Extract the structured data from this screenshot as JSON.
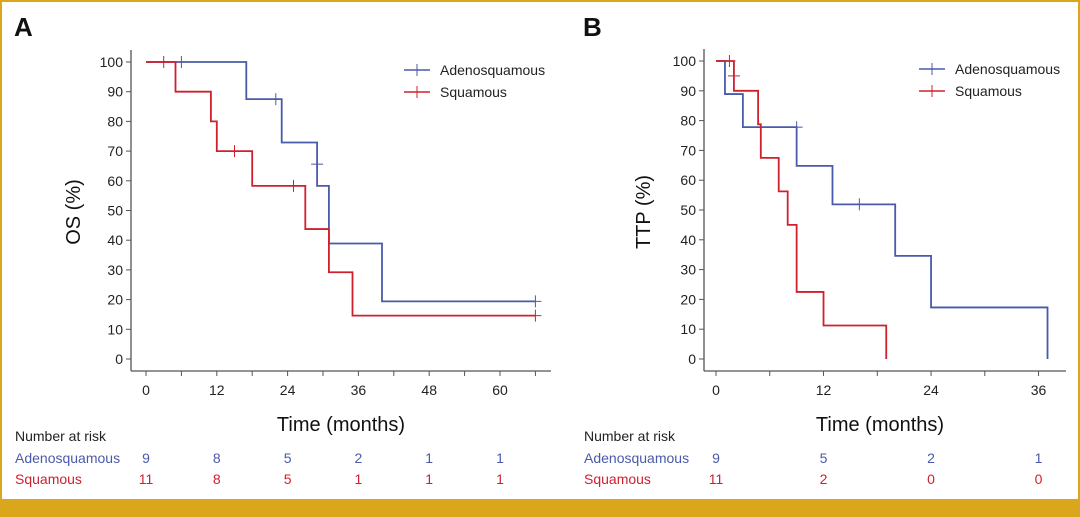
{
  "colors": {
    "adeno": "#4a5aaa",
    "squamous": "#d0202e",
    "accent": "#d9a61c",
    "axis": "#555555"
  },
  "risk_table_title": "Number at risk",
  "chart_data": [
    {
      "panel": "A",
      "type": "line",
      "subtype": "kaplan-meier step",
      "title": "",
      "xlabel": "Time (months)",
      "ylabel": "OS (%)",
      "xlim": [
        0,
        66
      ],
      "ylim": [
        0,
        100
      ],
      "xticks": [
        0,
        12,
        24,
        36,
        48,
        60
      ],
      "xminor_step": 6,
      "yticks": [
        0,
        10,
        20,
        30,
        40,
        50,
        60,
        70,
        80,
        90,
        100
      ],
      "legend": {
        "placement": "top-right",
        "entries": [
          "Adenosquamous",
          "Squamous"
        ]
      },
      "series": [
        {
          "name": "Adenosquamous",
          "color_key": "adeno",
          "steps": [
            [
              0,
              100
            ],
            [
              17,
              87.5
            ],
            [
              23,
              72.9
            ],
            [
              29,
              58.3
            ],
            [
              31,
              38.9
            ],
            [
              40,
              19.4
            ]
          ],
          "end_x": 66,
          "censored": [
            [
              6,
              100
            ],
            [
              22,
              87.5
            ],
            [
              29,
              65.6
            ],
            [
              66,
              19.4
            ]
          ]
        },
        {
          "name": "Squamous",
          "color_key": "squamous",
          "steps": [
            [
              0,
              100
            ],
            [
              5,
              90
            ],
            [
              11,
              80
            ],
            [
              12,
              70
            ],
            [
              18,
              58.3
            ],
            [
              27,
              43.75
            ],
            [
              31,
              29.2
            ],
            [
              35,
              14.6
            ]
          ],
          "end_x": 66,
          "censored": [
            [
              3,
              100
            ],
            [
              15,
              70
            ],
            [
              25,
              58.3
            ],
            [
              66,
              14.6
            ]
          ]
        }
      ],
      "risk_table": {
        "times": [
          0,
          12,
          24,
          36,
          48,
          60
        ],
        "rows": [
          {
            "name": "Adenosquamous",
            "color_key": "adeno",
            "values": [
              "9",
              "8",
              "5",
              "2",
              "1",
              "1"
            ]
          },
          {
            "name": "Squamous",
            "color_key": "squamous",
            "values": [
              "11",
              "8",
              "5",
              "1",
              "1",
              "1"
            ]
          }
        ]
      }
    },
    {
      "panel": "B",
      "type": "line",
      "subtype": "kaplan-meier step",
      "title": "",
      "xlabel": "Time (months)",
      "ylabel": "TTP (%)",
      "xlim": [
        0,
        39
      ],
      "ylim": [
        0,
        100
      ],
      "xticks": [
        0,
        12,
        24,
        36
      ],
      "xminor_step": 6,
      "yticks": [
        0,
        10,
        20,
        30,
        40,
        50,
        60,
        70,
        80,
        90,
        100
      ],
      "legend": {
        "placement": "top-right",
        "entries": [
          "Adenosquamous",
          "Squamous"
        ]
      },
      "series": [
        {
          "name": "Adenosquamous",
          "color_key": "adeno",
          "steps": [
            [
              0,
              100
            ],
            [
              1,
              88.9
            ],
            [
              3,
              77.8
            ],
            [
              9,
              64.8
            ],
            [
              13,
              51.9
            ],
            [
              20,
              34.6
            ],
            [
              24,
              17.3
            ],
            [
              37,
              0
            ]
          ],
          "end_x": 37,
          "censored": [
            [
              9,
              77.8
            ],
            [
              16,
              51.9
            ]
          ]
        },
        {
          "name": "Squamous",
          "color_key": "squamous",
          "steps": [
            [
              0,
              100
            ],
            [
              2,
              90
            ],
            [
              4.7,
              78.75
            ],
            [
              5,
              67.5
            ],
            [
              7,
              56.25
            ],
            [
              8,
              45
            ],
            [
              9,
              22.5
            ],
            [
              12,
              11.25
            ],
            [
              19,
              0
            ]
          ],
          "end_x": 19,
          "censored": [
            [
              1.5,
              100
            ],
            [
              2,
              95
            ]
          ]
        }
      ],
      "risk_table": {
        "times": [
          0,
          12,
          24,
          36
        ],
        "rows": [
          {
            "name": "Adenosquamous",
            "color_key": "adeno",
            "values": [
              "9",
              "5",
              "2",
              "1"
            ]
          },
          {
            "name": "Squamous",
            "color_key": "squamous",
            "values": [
              "11",
              "2",
              "0",
              "0"
            ]
          }
        ]
      }
    }
  ]
}
